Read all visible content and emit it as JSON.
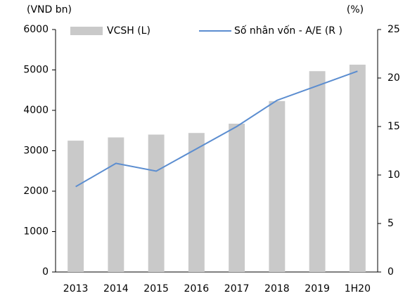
{
  "chart_data": {
    "type": "bar_line",
    "y_label": "(VND bn)",
    "y2_label": "(%)",
    "categories": [
      "2013",
      "2014",
      "2015",
      "2016",
      "2017",
      "2018",
      "2019",
      "1H20"
    ],
    "series": [
      {
        "name": "VCSH (L)",
        "type": "bar",
        "color": "#c9c9c9",
        "axis": "y",
        "values": [
          3250,
          3330,
          3400,
          3440,
          3670,
          4230,
          4970,
          5130
        ]
      },
      {
        "name": "Số nhân vốn - A/E (R )",
        "type": "line",
        "color": "#5b8dd0",
        "axis": "y2",
        "values": [
          8.8,
          11.2,
          10.4,
          12.7,
          15.0,
          17.7,
          19.2,
          20.7
        ]
      }
    ],
    "ylim": [
      0,
      6000
    ],
    "yticks": [
      0,
      1000,
      2000,
      3000,
      4000,
      5000,
      6000
    ],
    "y2lim": [
      0,
      25
    ],
    "y2ticks": [
      0,
      5,
      10,
      15,
      20,
      25
    ],
    "grid": false,
    "legend": "top"
  }
}
